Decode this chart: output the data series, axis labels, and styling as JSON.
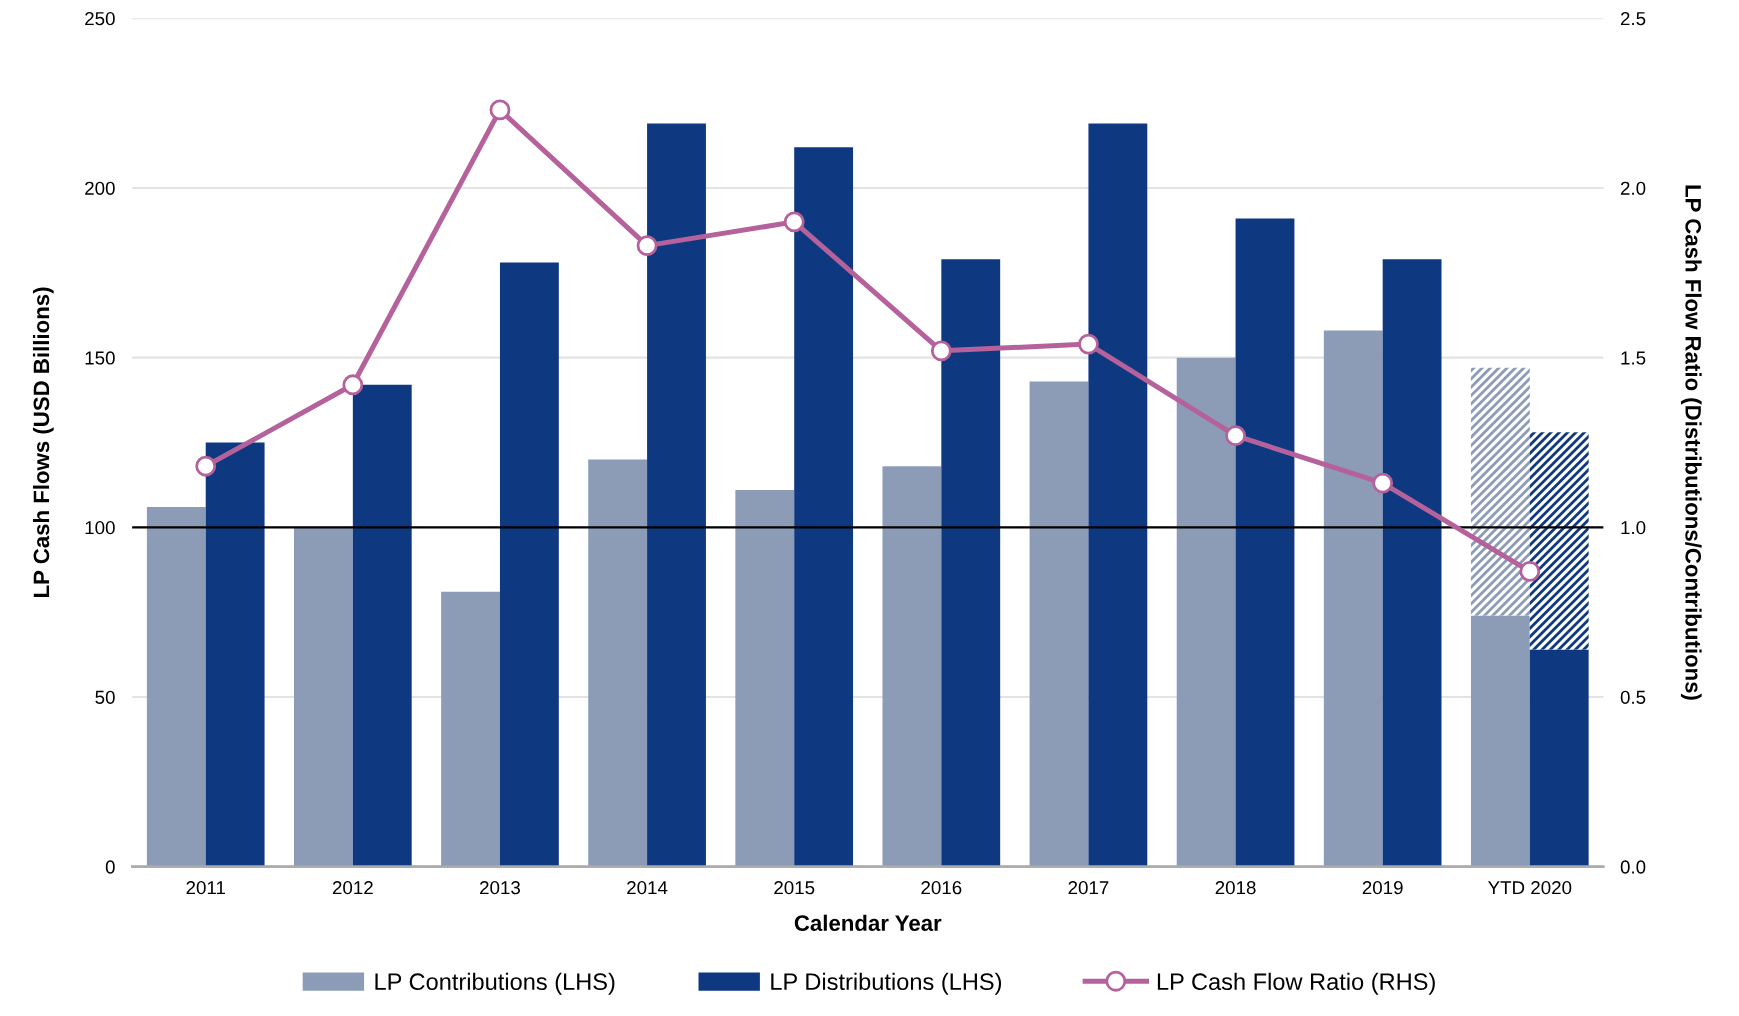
{
  "chart_data": {
    "type": "bar",
    "categories": [
      "2011",
      "2012",
      "2013",
      "2014",
      "2015",
      "2016",
      "2017",
      "2018",
      "2019",
      "YTD 2020"
    ],
    "xlabel": "Calendar Year",
    "ylabel": "LP Cash Flows (USD Billions)",
    "y2label": "LP Cash Flow Ratio (Distributions/Contributions)",
    "series": [
      {
        "name": "LP Contributions (LHS)",
        "color": "#8c9cb7",
        "values": [
          106,
          100,
          81,
          120,
          111,
          118,
          143,
          150,
          158,
          74
        ]
      },
      {
        "color": "#8c9cb7",
        "base": [
          null,
          null,
          null,
          null,
          null,
          null,
          null,
          null,
          null,
          74
        ],
        "values": [
          null,
          null,
          null,
          null,
          null,
          null,
          null,
          null,
          null,
          73
        ]
      },
      {
        "name": "LP Distributions (LHS)",
        "color": "#0e3880",
        "values": [
          125,
          142,
          178,
          219,
          212,
          179,
          219,
          191,
          179,
          64
        ]
      },
      {
        "color": "#0e3880",
        "base": [
          null,
          null,
          null,
          null,
          null,
          null,
          null,
          null,
          null,
          64
        ],
        "values": [
          null,
          null,
          null,
          null,
          null,
          null,
          null,
          null,
          null,
          64
        ]
      },
      {
        "name": "LP Cash Flow Ratio (RHS)",
        "type": "line",
        "axis": "y2",
        "color": "#b5629c",
        "values": [
          1.18,
          1.42,
          2.23,
          1.83,
          1.9,
          1.52,
          1.54,
          1.27,
          1.13,
          0.87
        ]
      }
    ],
    "ylim": [
      0,
      250
    ],
    "yticks": [
      0,
      50,
      100,
      150,
      200,
      250
    ],
    "y2lim": [
      0,
      2.5
    ],
    "y2ticks": [
      {
        "value": 0,
        "label": "0.0"
      },
      {
        "value": 0.5,
        "label": "0.5"
      },
      {
        "value": 1,
        "label": "1.0"
      },
      {
        "value": 1.5,
        "label": "1.5"
      },
      {
        "value": 2,
        "label": "2.0"
      },
      {
        "value": 2.5,
        "label": "2.5"
      }
    ],
    "ref_lines": [
      {
        "axis": "y",
        "value": 100,
        "color": "#000000"
      }
    ],
    "grid": "y",
    "legend": "bottom",
    "marker": "circle",
    "line_style": "solid"
  }
}
